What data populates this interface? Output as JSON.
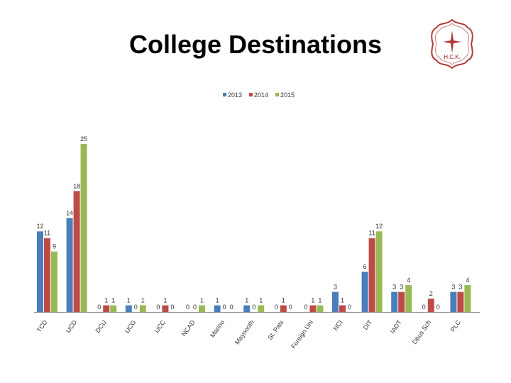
{
  "slide": {
    "title": "College Destinations"
  },
  "logo": {
    "text": "H.C.K.",
    "color": "#8b1a1a"
  },
  "chart_data": {
    "type": "bar",
    "categories": [
      "TCD",
      "UCD",
      "DCU",
      "UCG",
      "UCC",
      "NCAD",
      "Marino",
      "Maynooth",
      "St. Pats",
      "Foreign Uni",
      "NCI",
      "DIT",
      "IADT",
      "Dbus Sch",
      "PLC"
    ],
    "series": [
      {
        "name": "2013",
        "color": "#4a7ebb",
        "values": [
          12,
          14,
          0,
          1,
          0,
          0,
          1,
          1,
          0,
          0,
          3,
          6,
          3,
          0,
          3
        ]
      },
      {
        "name": "2014",
        "color": "#be4b48",
        "values": [
          11,
          18,
          1,
          0,
          1,
          0,
          0,
          0,
          1,
          1,
          1,
          11,
          3,
          2,
          3
        ]
      },
      {
        "name": "2015",
        "color": "#98b954",
        "values": [
          9,
          25,
          1,
          1,
          0,
          1,
          0,
          1,
          0,
          1,
          0,
          12,
          4,
          0,
          4
        ]
      }
    ],
    "ylim": [
      0,
      25
    ],
    "legend": "top",
    "grid": false,
    "data_labels": true
  }
}
